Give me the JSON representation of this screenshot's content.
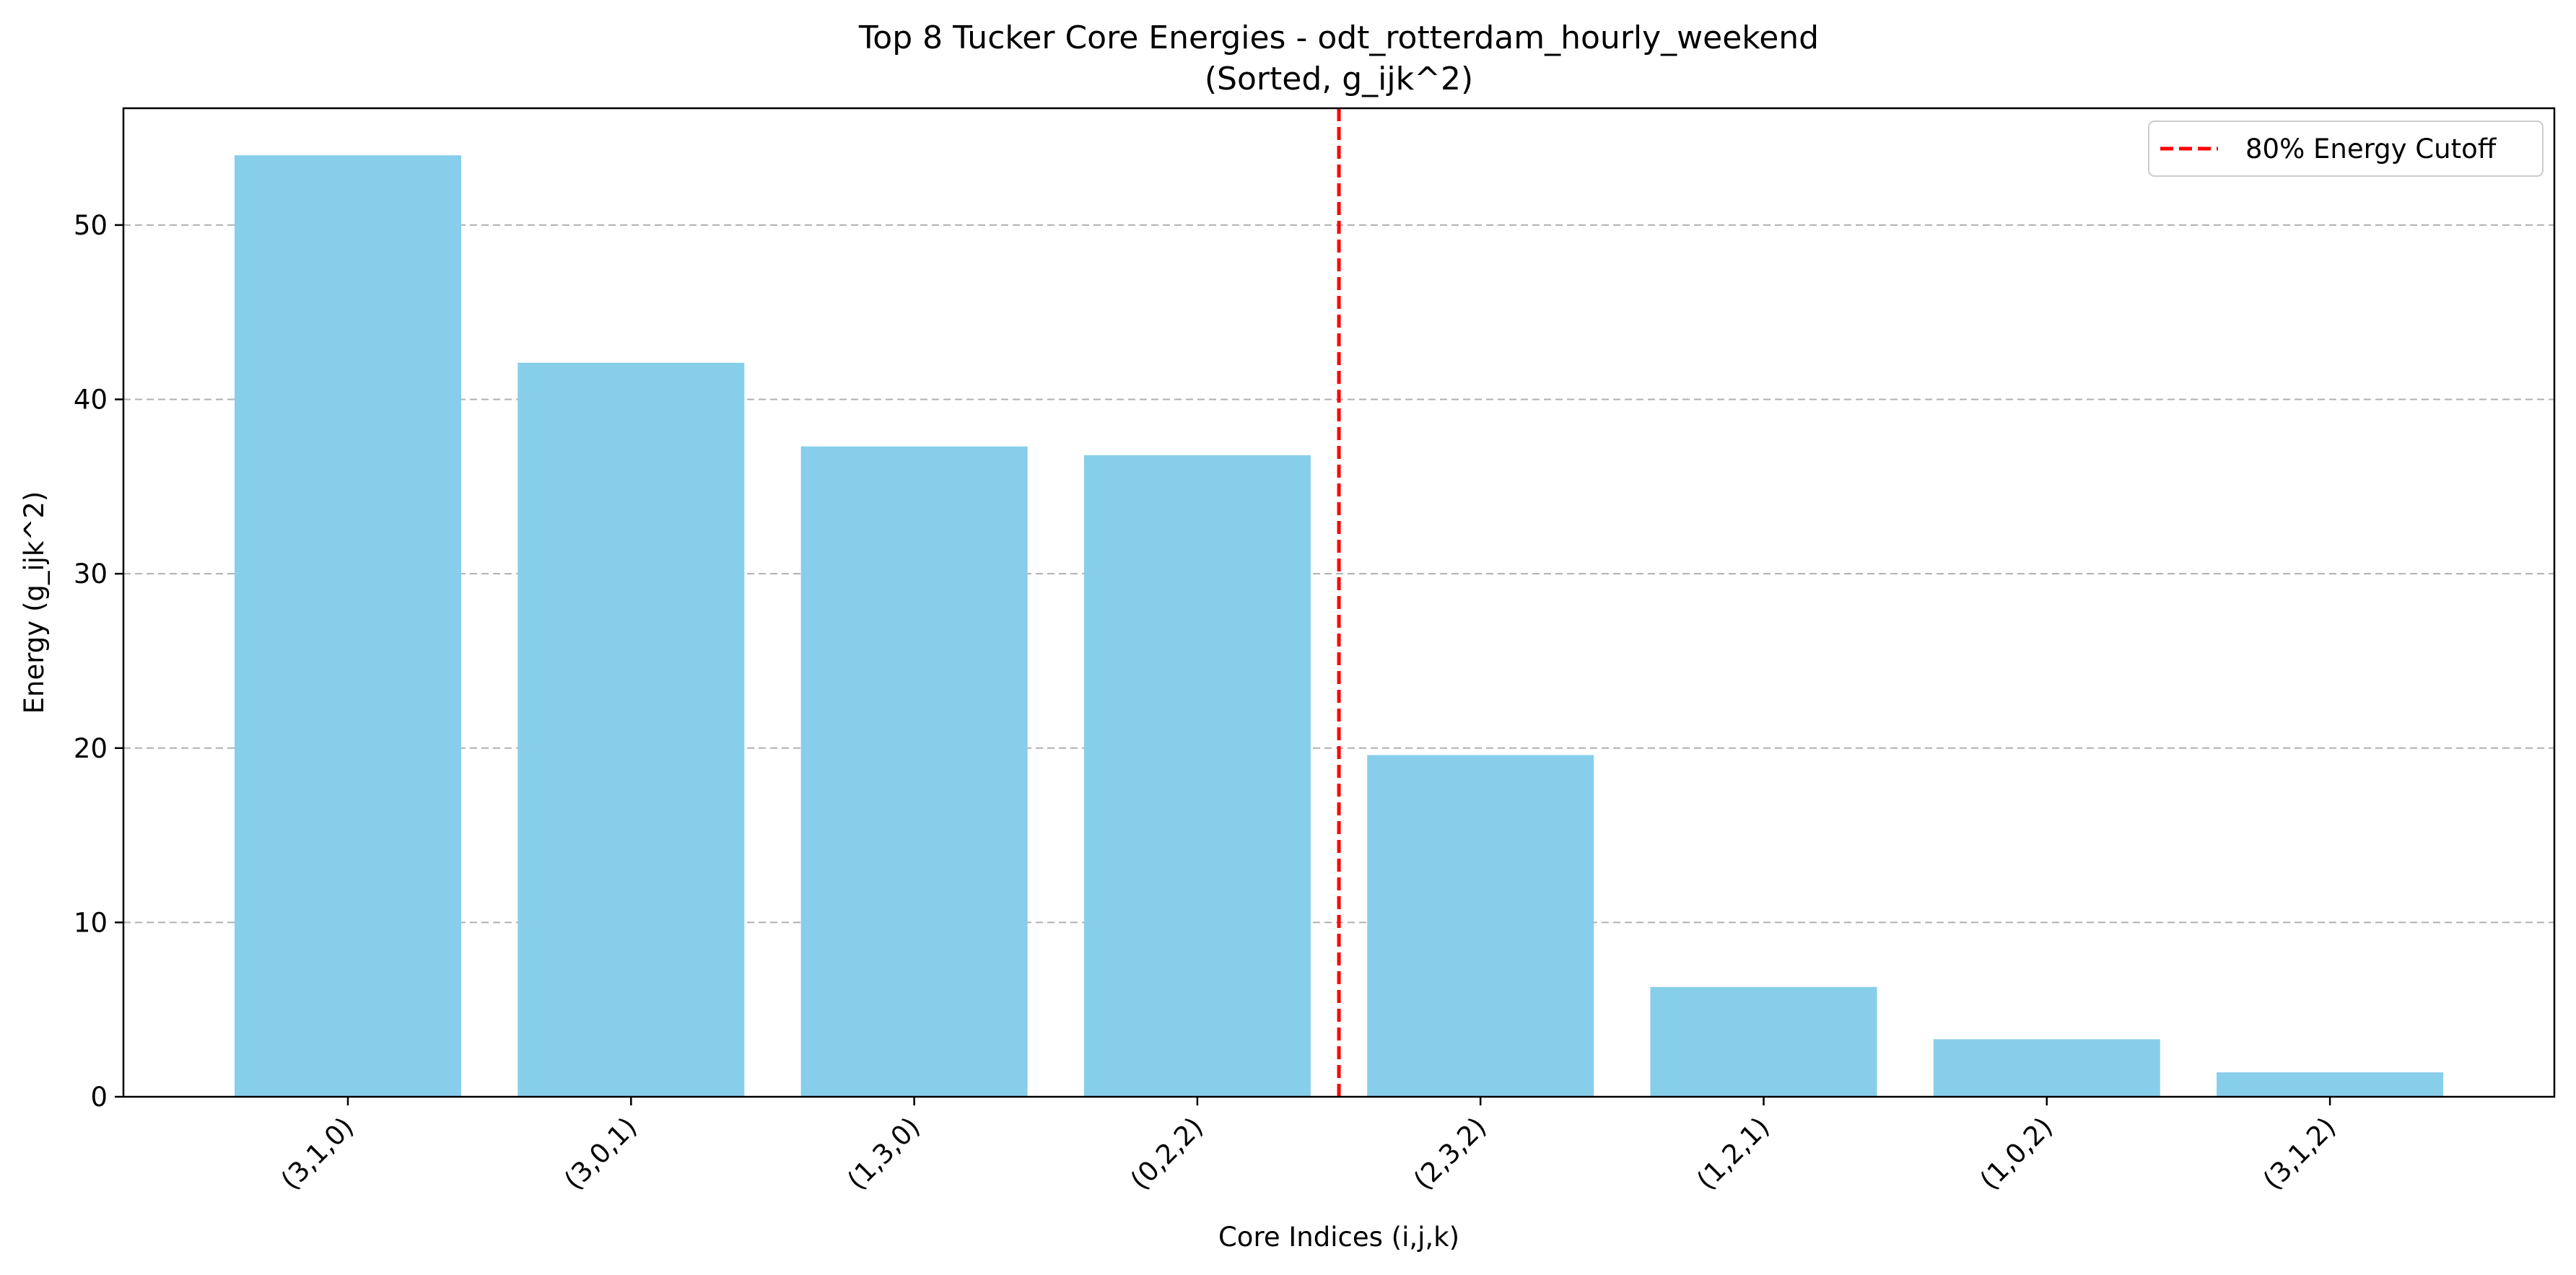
{
  "chart_data": {
    "type": "bar",
    "title": "Top 8 Tucker Core Energies - odt_rotterdam_hourly_weekend",
    "subtitle": "(Sorted, g_ijk^2)",
    "xlabel": "Core Indices (i,j,k)",
    "ylabel": "Energy (g_ijk^2)",
    "categories": [
      "(3,1,0)",
      "(3,0,1)",
      "(1,3,0)",
      "(0,2,2)",
      "(2,3,2)",
      "(1,2,1)",
      "(1,0,2)",
      "(3,1,2)"
    ],
    "values": [
      54.0,
      42.1,
      37.3,
      36.8,
      19.6,
      6.3,
      3.3,
      1.4
    ],
    "ylim": [
      0,
      56.7
    ],
    "yticks": [
      0,
      10,
      20,
      30,
      40,
      50
    ],
    "grid": "y-dashed",
    "bar_color": "#87CEEB",
    "cutoff": {
      "label": "80% Energy Cutoff",
      "color": "#FF0000",
      "after_category_index": 3
    },
    "legend_position": "top-right"
  }
}
